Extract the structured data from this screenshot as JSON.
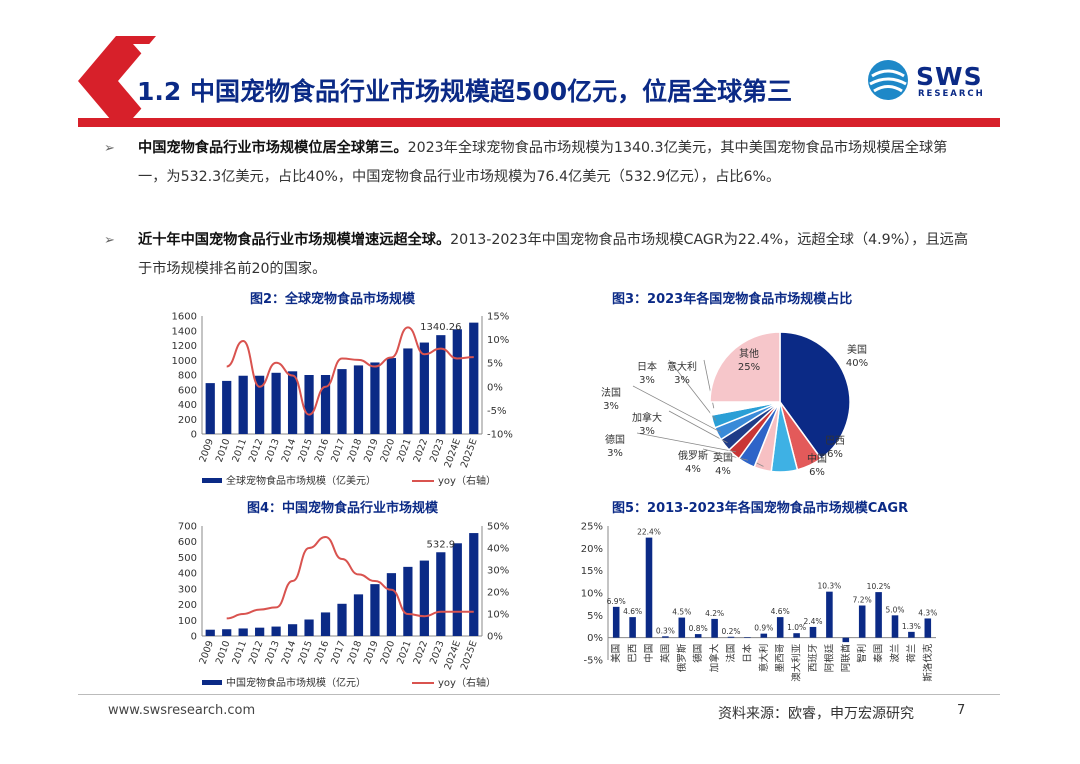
{
  "header": {
    "title": "1.2 中国宠物食品行业市场规模超500亿元，位居全球第三",
    "logo_text": "SWS",
    "logo_sub": "RESEARCH"
  },
  "bullets": [
    {
      "bold": "中国宠物食品行业市场规模位居全球第三。",
      "text": "2023年全球宠物食品市场规模为1340.3亿美元，其中美国宠物食品市场规模居全球第一，为532.3亿美元，占比40%，中国宠物食品行业市场规模为76.4亿美元（532.9亿元），占比6%。"
    },
    {
      "bold": "近十年中国宠物食品行业市场规模增速远超全球。",
      "text": "2013-2023年中国宠物食品市场规模CAGR为22.4%，远超全球（4.9%），且远高于市场规模排名前20的国家。"
    }
  ],
  "figures": {
    "fig2_title": "图2：全球宠物食品市场规模",
    "fig3_title": "图3：2023年各国宠物食品市场规模占比",
    "fig4_title": "图4：中国宠物食品行业市场规模",
    "fig5_title": "图5：2013-2023年各国宠物食品市场规模CAGR"
  },
  "chart_data": [
    {
      "id": "fig2",
      "type": "bar",
      "categories": [
        "2009",
        "2010",
        "2011",
        "2012",
        "2013",
        "2014",
        "2015",
        "2016",
        "2017",
        "2018",
        "2019",
        "2020",
        "2021",
        "2022",
        "2023",
        "2024E",
        "2025E"
      ],
      "series": [
        {
          "name": "全球宠物食品市场规模（亿美元）",
          "type": "bar",
          "axis": "left",
          "values": [
            690,
            720,
            790,
            790,
            830,
            850,
            800,
            800,
            880,
            930,
            970,
            1030,
            1160,
            1240,
            1340.26,
            1420,
            1510
          ]
        },
        {
          "name": "yoy（右轴）",
          "type": "line",
          "axis": "right",
          "values": [
            null,
            4.3,
            9.7,
            0.0,
            5.1,
            2.4,
            -5.9,
            0.0,
            6.0,
            5.7,
            4.3,
            6.2,
            12.6,
            6.9,
            8.1,
            6.0,
            6.3
          ]
        }
      ],
      "data_labels": [
        {
          "index": 14,
          "text": "1340.26"
        }
      ],
      "ylim_left": [
        0,
        1600
      ],
      "yticks_left": [
        "0",
        "200",
        "400",
        "600",
        "800",
        "1000",
        "1200",
        "1400",
        "1600"
      ],
      "ylim_right": [
        -10,
        15
      ],
      "yticks_right": [
        "-10%",
        "-5%",
        "0%",
        "5%",
        "10%",
        "15%"
      ],
      "legend_position": "bottom"
    },
    {
      "id": "fig3",
      "type": "pie",
      "slices": [
        {
          "label": "美国",
          "value_label": "40%",
          "value": 40,
          "color": "#0b2a86"
        },
        {
          "label": "巴西",
          "value_label": "6%",
          "value": 6,
          "color": "#e35a5a"
        },
        {
          "label": "中国",
          "value_label": "6%",
          "value": 6,
          "color": "#3eb1e4"
        },
        {
          "label": "英国",
          "value_label": "4%",
          "value": 4,
          "color": "#f7c0c3"
        },
        {
          "label": "俄罗斯",
          "value_label": "4%",
          "value": 4,
          "color": "#2e64c8"
        },
        {
          "label": "德国",
          "value_label": "3%",
          "value": 3,
          "color": "#c93636"
        },
        {
          "label": "加拿大",
          "value_label": "3%",
          "value": 3,
          "color": "#1f3c88"
        },
        {
          "label": "法国",
          "value_label": "3%",
          "value": 3,
          "color": "#3a8ad8"
        },
        {
          "label": "日本",
          "value_label": "3%",
          "value": 3,
          "color": "#2a9fd6"
        },
        {
          "label": "意大利",
          "value_label": "3%",
          "value": 3,
          "color": "#ffffff"
        },
        {
          "label": "其他",
          "value_label": "25%",
          "value": 25,
          "color": "#f6c6ca"
        }
      ]
    },
    {
      "id": "fig4",
      "type": "bar",
      "categories": [
        "2009",
        "2010",
        "2011",
        "2012",
        "2013",
        "2014",
        "2015",
        "2016",
        "2017",
        "2018",
        "2019",
        "2020",
        "2021",
        "2022",
        "2023",
        "2024E",
        "2025E"
      ],
      "series": [
        {
          "name": "中国宠物食品市场规模（亿元）",
          "type": "bar",
          "axis": "left",
          "values": [
            40,
            43,
            48,
            53,
            60,
            75,
            105,
            150,
            205,
            265,
            330,
            400,
            440,
            480,
            532.9,
            590,
            655
          ]
        },
        {
          "name": "yoy（右轴）",
          "type": "line",
          "axis": "right",
          "values": [
            null,
            8,
            10,
            12,
            13,
            25,
            40,
            45,
            35,
            28,
            25,
            21,
            10,
            9,
            11,
            11,
            11
          ]
        }
      ],
      "data_labels": [
        {
          "index": 14,
          "text": "532.9"
        }
      ],
      "ylim_left": [
        0,
        700
      ],
      "yticks_left": [
        "0",
        "100",
        "200",
        "300",
        "400",
        "500",
        "600",
        "700"
      ],
      "ylim_right": [
        0,
        50
      ],
      "yticks_right": [
        "0%",
        "10%",
        "20%",
        "30%",
        "40%",
        "50%"
      ],
      "legend_position": "bottom"
    },
    {
      "id": "fig5",
      "type": "bar",
      "categories": [
        "美国",
        "巴西",
        "中国",
        "英国",
        "俄罗斯",
        "德国",
        "加拿大",
        "法国",
        "日本",
        "意大利",
        "墨西哥",
        "澳大利亚",
        "西班牙",
        "阿根廷",
        "阿联酋",
        "智利",
        "泰国",
        "波兰",
        "荷兰",
        "斯洛伐克"
      ],
      "values": [
        6.9,
        4.6,
        22.4,
        0.3,
        4.5,
        0.8,
        4.2,
        0.2,
        0.1,
        0.9,
        4.6,
        1.0,
        2.4,
        10.3,
        -1.0,
        7.2,
        10.2,
        5.0,
        1.3,
        4.3
      ],
      "value_labels": [
        "6.9%",
        "4.6%",
        "22.4%",
        "0.3%",
        "4.5%",
        "0.8%",
        "4.2%",
        "0.2%",
        "",
        "0.9%",
        "4.6%",
        "1.0%",
        "2.4%",
        "10.3%",
        "",
        "7.2%",
        "10.2%",
        "5.0%",
        "1.3%",
        "4.3%"
      ],
      "ylim": [
        -5,
        25
      ],
      "yticks": [
        "-5%",
        "0%",
        "5%",
        "10%",
        "15%",
        "20%",
        "25%"
      ]
    }
  ],
  "footer": {
    "website": "www.swsresearch.com",
    "source": "资料来源：欧睿，申万宏源研究",
    "page": "7"
  }
}
